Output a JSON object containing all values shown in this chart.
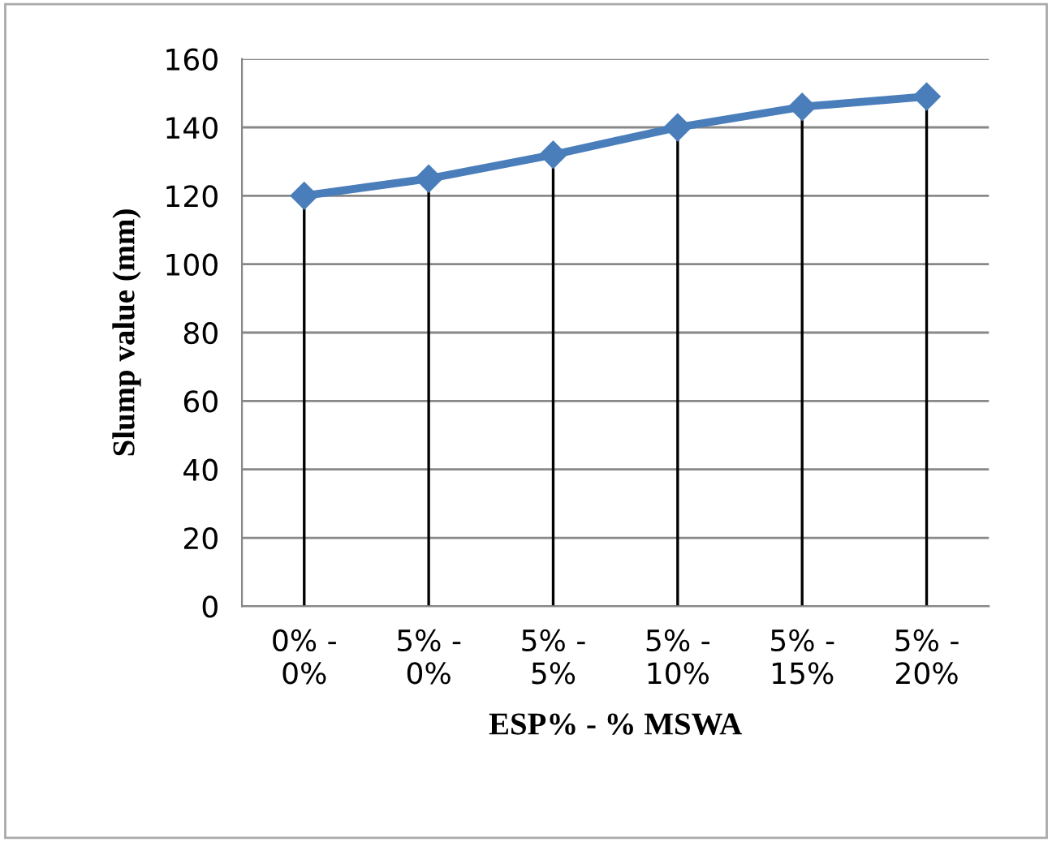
{
  "chart_data": {
    "type": "line",
    "xlabel": "ESP% - % MSWA",
    "ylabel": "Slump value (mm)",
    "categories": [
      "0% -\n0%",
      "5% -\n0%",
      "5% -\n5%",
      "5% -\n10%",
      "5% -\n15%",
      "5% -\n20%"
    ],
    "series": [
      {
        "color": "#4a7ebb",
        "values": [
          120,
          125,
          132,
          140,
          146,
          149
        ]
      }
    ],
    "ylim": [
      0,
      160
    ],
    "yticks": [
      0,
      20,
      40,
      60,
      80,
      100,
      120,
      140,
      160
    ],
    "grid": true,
    "marker": "diamond",
    "line_style": "solid"
  }
}
